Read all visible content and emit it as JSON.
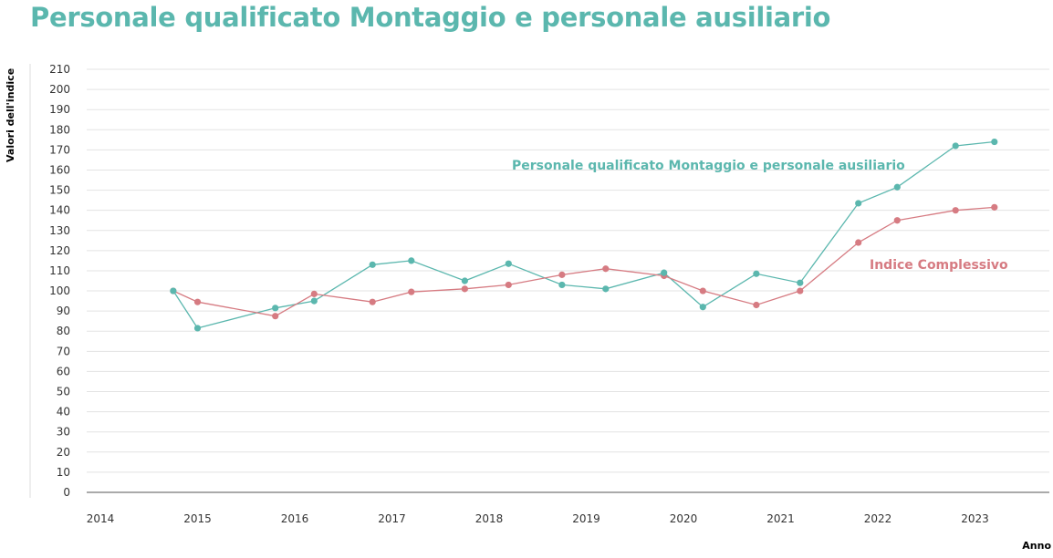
{
  "chart_data": {
    "type": "line",
    "title": "Personale qualificato Montaggio e personale ausiliario",
    "ylabel": "Valori dell'indice",
    "xlabel": "Anno",
    "ylim": [
      0,
      210
    ],
    "yticks": [
      0,
      10,
      20,
      30,
      40,
      50,
      60,
      70,
      80,
      90,
      100,
      110,
      120,
      130,
      140,
      150,
      160,
      170,
      180,
      190,
      200,
      210
    ],
    "xlim": [
      2014,
      2024
    ],
    "xticks": [
      "2014",
      "2015",
      "2016",
      "2017",
      "2018",
      "2019",
      "2020",
      "2021",
      "2022",
      "2023"
    ],
    "grid": true,
    "series": [
      {
        "name": "Personale qualificato Montaggio e personale ausiliario",
        "color": "#5bb7ae",
        "x": [
          2014.75,
          2015.0,
          2015.8,
          2016.2,
          2016.8,
          2017.2,
          2017.75,
          2018.2,
          2018.75,
          2019.2,
          2019.8,
          2020.2,
          2020.75,
          2021.2,
          2021.8,
          2022.2,
          2022.8,
          2023.2
        ],
        "values": [
          100,
          81.5,
          91.5,
          95,
          113,
          115,
          105,
          113.5,
          103,
          101,
          109,
          92,
          108.5,
          104,
          143.5,
          151.5,
          172,
          174
        ]
      },
      {
        "name": "Indice Complessivo",
        "color": "#d67b82",
        "x": [
          2014.75,
          2015.0,
          2015.8,
          2016.2,
          2016.8,
          2017.2,
          2017.75,
          2018.2,
          2018.75,
          2019.2,
          2019.8,
          2020.2,
          2020.75,
          2021.2,
          2021.8,
          2022.2,
          2022.8,
          2023.2
        ],
        "values": [
          100,
          94.5,
          87.5,
          98.5,
          94.5,
          99.5,
          101,
          103,
          108,
          111,
          107.5,
          100,
          93,
          100,
          124,
          135,
          140,
          141.5
        ]
      }
    ]
  }
}
